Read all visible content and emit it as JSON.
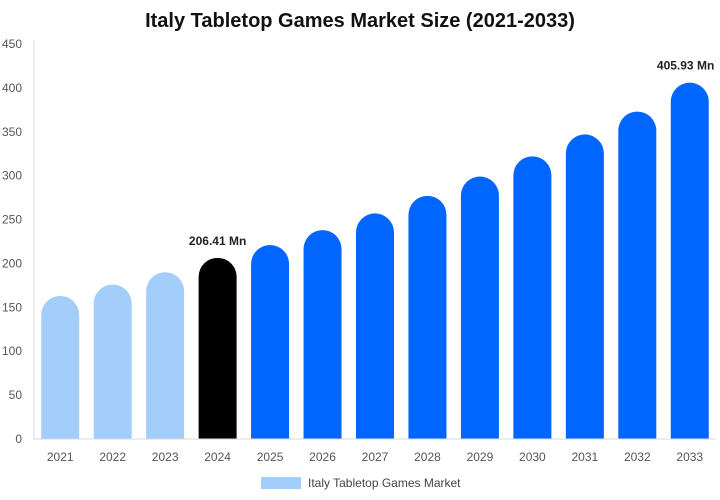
{
  "chart_data": {
    "type": "bar",
    "title": "Italy Tabletop Games Market Size (2021-2033)",
    "categories": [
      "2021",
      "2022",
      "2023",
      "2024",
      "2025",
      "2026",
      "2027",
      "2028",
      "2029",
      "2030",
      "2031",
      "2032",
      "2033"
    ],
    "series": [
      {
        "name": "Italy Tabletop Games Market",
        "values": [
          163,
          176,
          190,
          206.41,
          221,
          238,
          257,
          277,
          299,
          322,
          347,
          373,
          405.93
        ]
      }
    ],
    "data_labels": [
      {
        "category": "2024",
        "text": "206.41 Mn"
      },
      {
        "category": "2033",
        "text": "405.93 Mn"
      }
    ],
    "highlight_category": "2024",
    "ylim": [
      0,
      450
    ],
    "yticks": [
      0,
      50,
      100,
      150,
      200,
      250,
      300,
      350,
      400,
      450
    ],
    "xlabel": "",
    "ylabel": "",
    "grid": false,
    "legend_position": "bottom",
    "colors": {
      "historical": "#a3cdfb",
      "current": "#000000",
      "forecast": "#0066ff",
      "legend_swatch": "#a3cdfb",
      "axis": "#d9d9d9"
    }
  }
}
